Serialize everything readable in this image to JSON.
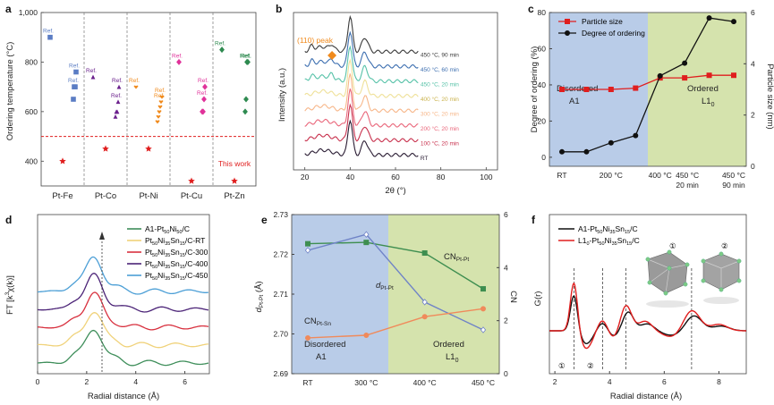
{
  "colors": {
    "fe": "#5b7dc4",
    "co": "#6a1f8c",
    "ni": "#f08a1c",
    "cu": "#e0329a",
    "zn": "#2e8a50",
    "red": "#e01e1e",
    "black": "#111111",
    "blue_bg": "#b9cce8",
    "green_bg": "#d5e3ad",
    "panel_e_green": "#3e8e50",
    "panel_e_blue": "#6f83c7",
    "panel_e_orange": "#f08a5b"
  },
  "panels": {
    "a": {
      "label": "a",
      "ylabel": "Ordering temperature (°C)",
      "ylim": [
        300,
        1000
      ],
      "yticks": [
        "400",
        "600",
        "800",
        "1,000"
      ],
      "ytick_values": [
        400,
        600,
        800,
        1000
      ],
      "groups": [
        "Pt-Fe",
        "Pt-Co",
        "Pt-Ni",
        "Pt-Cu",
        "Pt-Zn"
      ],
      "ref_label": "Ref.",
      "this_work_label": "This work",
      "this_work_line": 500,
      "refs": [
        {
          "group": "Pt-Fe",
          "marker": "square",
          "values": [
            900,
            760,
            700,
            700,
            650
          ]
        },
        {
          "group": "Pt-Co",
          "marker": "triangle",
          "values": [
            740,
            700,
            640,
            600,
            600,
            580
          ]
        },
        {
          "group": "Pt-Ni",
          "marker": "heart",
          "values": [
            700,
            660,
            640,
            620,
            600,
            580,
            560
          ]
        },
        {
          "group": "Pt-Cu",
          "marker": "diamond",
          "values": [
            800,
            700,
            650,
            600,
            600
          ]
        },
        {
          "group": "Pt-Zn",
          "marker": "diamond",
          "values": [
            850,
            800,
            800,
            650,
            600
          ]
        }
      ],
      "this_work": [
        400,
        450,
        450,
        320,
        320
      ]
    },
    "b": {
      "label": "b",
      "ylabel": "Intensity (a.u.)",
      "xlabel": "2θ (°)",
      "xticks": [
        "20",
        "40",
        "60",
        "80",
        "100"
      ],
      "xtick_values": [
        20,
        40,
        60,
        80,
        100
      ],
      "xlim": [
        15,
        105
      ],
      "peak_label": "(110) peak",
      "peak_position": 32,
      "traces": [
        {
          "label": "RT",
          "color": "#2a1c33"
        },
        {
          "label": "100 °C, 20 min",
          "color": "#c8324e"
        },
        {
          "label": "200 °C, 20 min",
          "color": "#e9667a"
        },
        {
          "label": "300 °C, 20 min",
          "color": "#f7b78a"
        },
        {
          "label": "400 °C, 20 min",
          "color": "#efe19a"
        },
        {
          "label": "450 °C, 20 min",
          "color": "#57c2a8"
        },
        {
          "label": "450 °C, 60 min",
          "color": "#3d6fb0"
        },
        {
          "label": "450 °C, 90 min",
          "color": "#3a3a3a"
        }
      ]
    },
    "c": {
      "label": "c",
      "ylabel_left": "Degree of ordering (%)",
      "ylabel_right": "Particle size (nm)",
      "ylim_left": [
        -5,
        80
      ],
      "ylim_right": [
        0,
        6
      ],
      "yticks_left": [
        "0",
        "20",
        "40",
        "60",
        "80"
      ],
      "ytick_values_left": [
        0,
        20,
        40,
        60,
        80
      ],
      "yticks_right": [
        "0",
        "2",
        "4",
        "6"
      ],
      "ytick_values_right": [
        0,
        2,
        4,
        6
      ],
      "xticks": [
        {
          "line1": "RT",
          "line2": ""
        },
        {
          "line1": "200 °C",
          "line2": ""
        },
        {
          "line1": "400 °C",
          "line2": ""
        },
        {
          "line1": "450 °C",
          "line2": "20 min"
        },
        {
          "line1": "450 °C",
          "line2": "90 min"
        }
      ],
      "region_left_line1": "Disordered",
      "region_left_line2": "A1",
      "region_right_line1": "Ordered",
      "region_right_line2": "L1",
      "region_right_sub": "0",
      "x": [
        0,
        1,
        2,
        3,
        4,
        5,
        6,
        7
      ],
      "series": [
        {
          "name": "Particle size",
          "color": "#e01e1e",
          "marker": "square",
          "axis": "right",
          "values": [
            3.0,
            3.0,
            3.0,
            3.05,
            3.45,
            3.45,
            3.55,
            3.55
          ]
        },
        {
          "name": "Degree of ordering",
          "color": "#111111",
          "marker": "circle",
          "axis": "left",
          "values": [
            3,
            3,
            8,
            12,
            45,
            52,
            77,
            75
          ]
        }
      ]
    },
    "d": {
      "label": "d",
      "ylabel_main": "FT [k",
      "ylabel_sup": "3",
      "ylabel_tail": "χ(k)]",
      "xlabel": "Radial distance (Å)",
      "xticks": [
        "0",
        "2",
        "4",
        "6"
      ],
      "xtick_values": [
        0,
        2,
        4,
        6
      ],
      "xlim": [
        0,
        7
      ],
      "legend": [
        {
          "parts": [
            [
              "A1-Pt",
              ""
            ],
            [
              "50",
              "sub"
            ],
            [
              "Ni",
              ""
            ],
            [
              "50",
              "sub"
            ],
            [
              "/C",
              ""
            ]
          ],
          "color": "#3e8e5a"
        },
        {
          "parts": [
            [
              "Pt",
              ""
            ],
            [
              "50",
              "sub"
            ],
            [
              "Ni",
              ""
            ],
            [
              "35",
              "sub"
            ],
            [
              "Sn",
              ""
            ],
            [
              "15",
              "sub"
            ],
            [
              "/C-RT",
              ""
            ]
          ],
          "color": "#f0d27a"
        },
        {
          "parts": [
            [
              "Pt",
              ""
            ],
            [
              "50",
              "sub"
            ],
            [
              "Ni",
              ""
            ],
            [
              "35",
              "sub"
            ],
            [
              "Sn",
              ""
            ],
            [
              "15",
              "sub"
            ],
            [
              "/C-300",
              ""
            ]
          ],
          "color": "#d8313f"
        },
        {
          "parts": [
            [
              "Pt",
              ""
            ],
            [
              "50",
              "sub"
            ],
            [
              "Ni",
              ""
            ],
            [
              "35",
              "sub"
            ],
            [
              "Sn",
              ""
            ],
            [
              "15",
              "sub"
            ],
            [
              "/C-400",
              ""
            ]
          ],
          "color": "#4b2377"
        },
        {
          "parts": [
            [
              "Pt",
              ""
            ],
            [
              "50",
              "sub"
            ],
            [
              "Ni",
              ""
            ],
            [
              "35",
              "sub"
            ],
            [
              "Sn",
              ""
            ],
            [
              "15",
              "sub"
            ],
            [
              "/C-450",
              ""
            ]
          ],
          "color": "#4c9fd6"
        }
      ]
    },
    "e": {
      "label": "e",
      "ylabel_left": "d",
      "ylabel_left_sub": "Pt-Pt",
      "ylabel_left_unit": " (Å)",
      "ylabel_right": "CN",
      "ylim_left": [
        2.69,
        2.73
      ],
      "yticks_left": [
        "2.69",
        "2.70",
        "2.71",
        "2.72",
        "2.73"
      ],
      "ytick_values_left": [
        2.69,
        2.7,
        2.71,
        2.72,
        2.73
      ],
      "ylim_right": [
        0,
        6
      ],
      "yticks_right": [
        "0",
        "2",
        "4",
        "6"
      ],
      "ytick_values_right": [
        0,
        2,
        4,
        6
      ],
      "xticks": [
        "RT",
        "300 °C",
        "400 °C",
        "450 °C"
      ],
      "region_left_line1": "Disordered",
      "region_left_line2": "A1",
      "region_right_line1": "Ordered",
      "region_right_line2": "L1",
      "region_right_sub": "0",
      "label_cn_ptpt": "CN",
      "label_cn_ptpt_sub": "Pt-Pt",
      "label_cn_ptsn": "CN",
      "label_cn_ptsn_sub": "Pt-Sn",
      "label_d": "d",
      "label_d_sub": "Pt-Pt",
      "series": [
        {
          "name": "CN Pt-Pt",
          "color": "#3e8e50",
          "marker": "square",
          "axis": "right",
          "values": [
            4.9,
            4.95,
            4.55,
            3.2
          ]
        },
        {
          "name": "d Pt-Pt",
          "color": "#6f83c7",
          "marker": "diamond",
          "axis": "left",
          "values": [
            2.721,
            2.725,
            2.708,
            2.701
          ]
        },
        {
          "name": "CN Pt-Sn",
          "color": "#f08a5b",
          "marker": "circle",
          "axis": "right",
          "values": [
            1.35,
            1.45,
            2.15,
            2.45
          ]
        }
      ]
    },
    "f": {
      "label": "f",
      "ylabel": "G(r)",
      "xlabel": "Radial distance (Å)",
      "xticks": [
        "2",
        "4",
        "6",
        "8"
      ],
      "xtick_values": [
        2,
        4,
        6,
        8
      ],
      "xlim": [
        1.8,
        9
      ],
      "legend": [
        {
          "parts": [
            [
              "A1-Pt",
              ""
            ],
            [
              "50",
              "sub"
            ],
            [
              "Ni",
              ""
            ],
            [
              "35",
              "sub"
            ],
            [
              "Sn",
              ""
            ],
            [
              "15",
              "sub"
            ],
            [
              "/C",
              ""
            ]
          ],
          "color": "#111111"
        },
        {
          "parts": [
            [
              "L1",
              ""
            ],
            [
              "0",
              "sub"
            ],
            [
              "-Pt",
              ""
            ],
            [
              "50",
              "sub"
            ],
            [
              "Ni",
              ""
            ],
            [
              "35",
              "sub"
            ],
            [
              "Sn",
              ""
            ],
            [
              "15",
              "sub"
            ],
            [
              "/C",
              ""
            ]
          ],
          "color": "#e01e1e"
        }
      ],
      "marker_1": "①",
      "marker_2": "②",
      "dashed_positions": [
        2.7,
        3.75,
        4.6,
        7.0
      ]
    }
  }
}
